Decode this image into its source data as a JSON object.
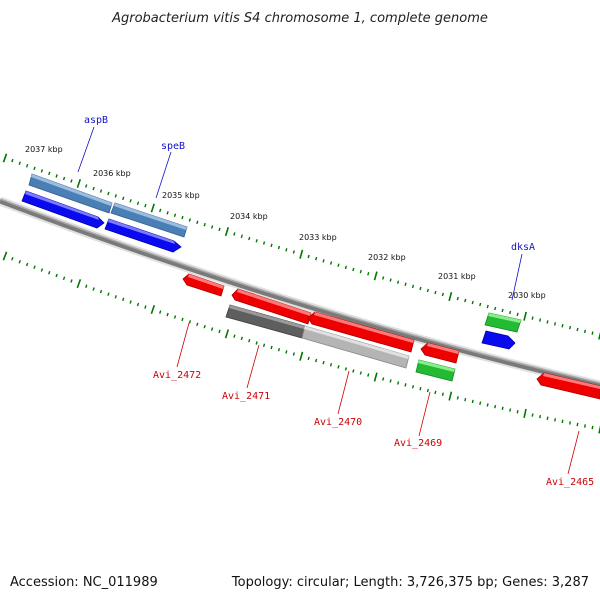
{
  "title": "Agrobacterium vitis S4 chromosome 1, complete genome",
  "footer": {
    "accession": "Accession: NC_011989",
    "topology": "Topology: circular; Length: 3,726,375 bp; Genes: 3,287"
  },
  "kbp_labels": [
    "2037 kbp",
    "2036 kbp",
    "2035 kbp",
    "2034 kbp",
    "2033 kbp",
    "2032 kbp",
    "2031 kbp",
    "2030 kbp"
  ],
  "gene_labels": {
    "aspB": "aspB",
    "speB": "speB",
    "dksA": "dksA",
    "avi_2472": "Avi_2472",
    "avi_2471": "Avi_2471",
    "avi_2470": "Avi_2470",
    "avi_2469": "Avi_2469",
    "avi_2465": "Avi_2465"
  },
  "colors": {
    "backbone": "#7a7a7a",
    "tick": "#007700",
    "label_blue": "#1111cc",
    "label_red": "#cc0000",
    "cds_blue": "#0a0aee",
    "cds_steelblue": "#4a7fb5",
    "cds_red": "#ee0000",
    "cds_green": "#22bb33",
    "cds_darkgray": "#5e5e5e",
    "cds_lightgray": "#b4b4b4"
  }
}
